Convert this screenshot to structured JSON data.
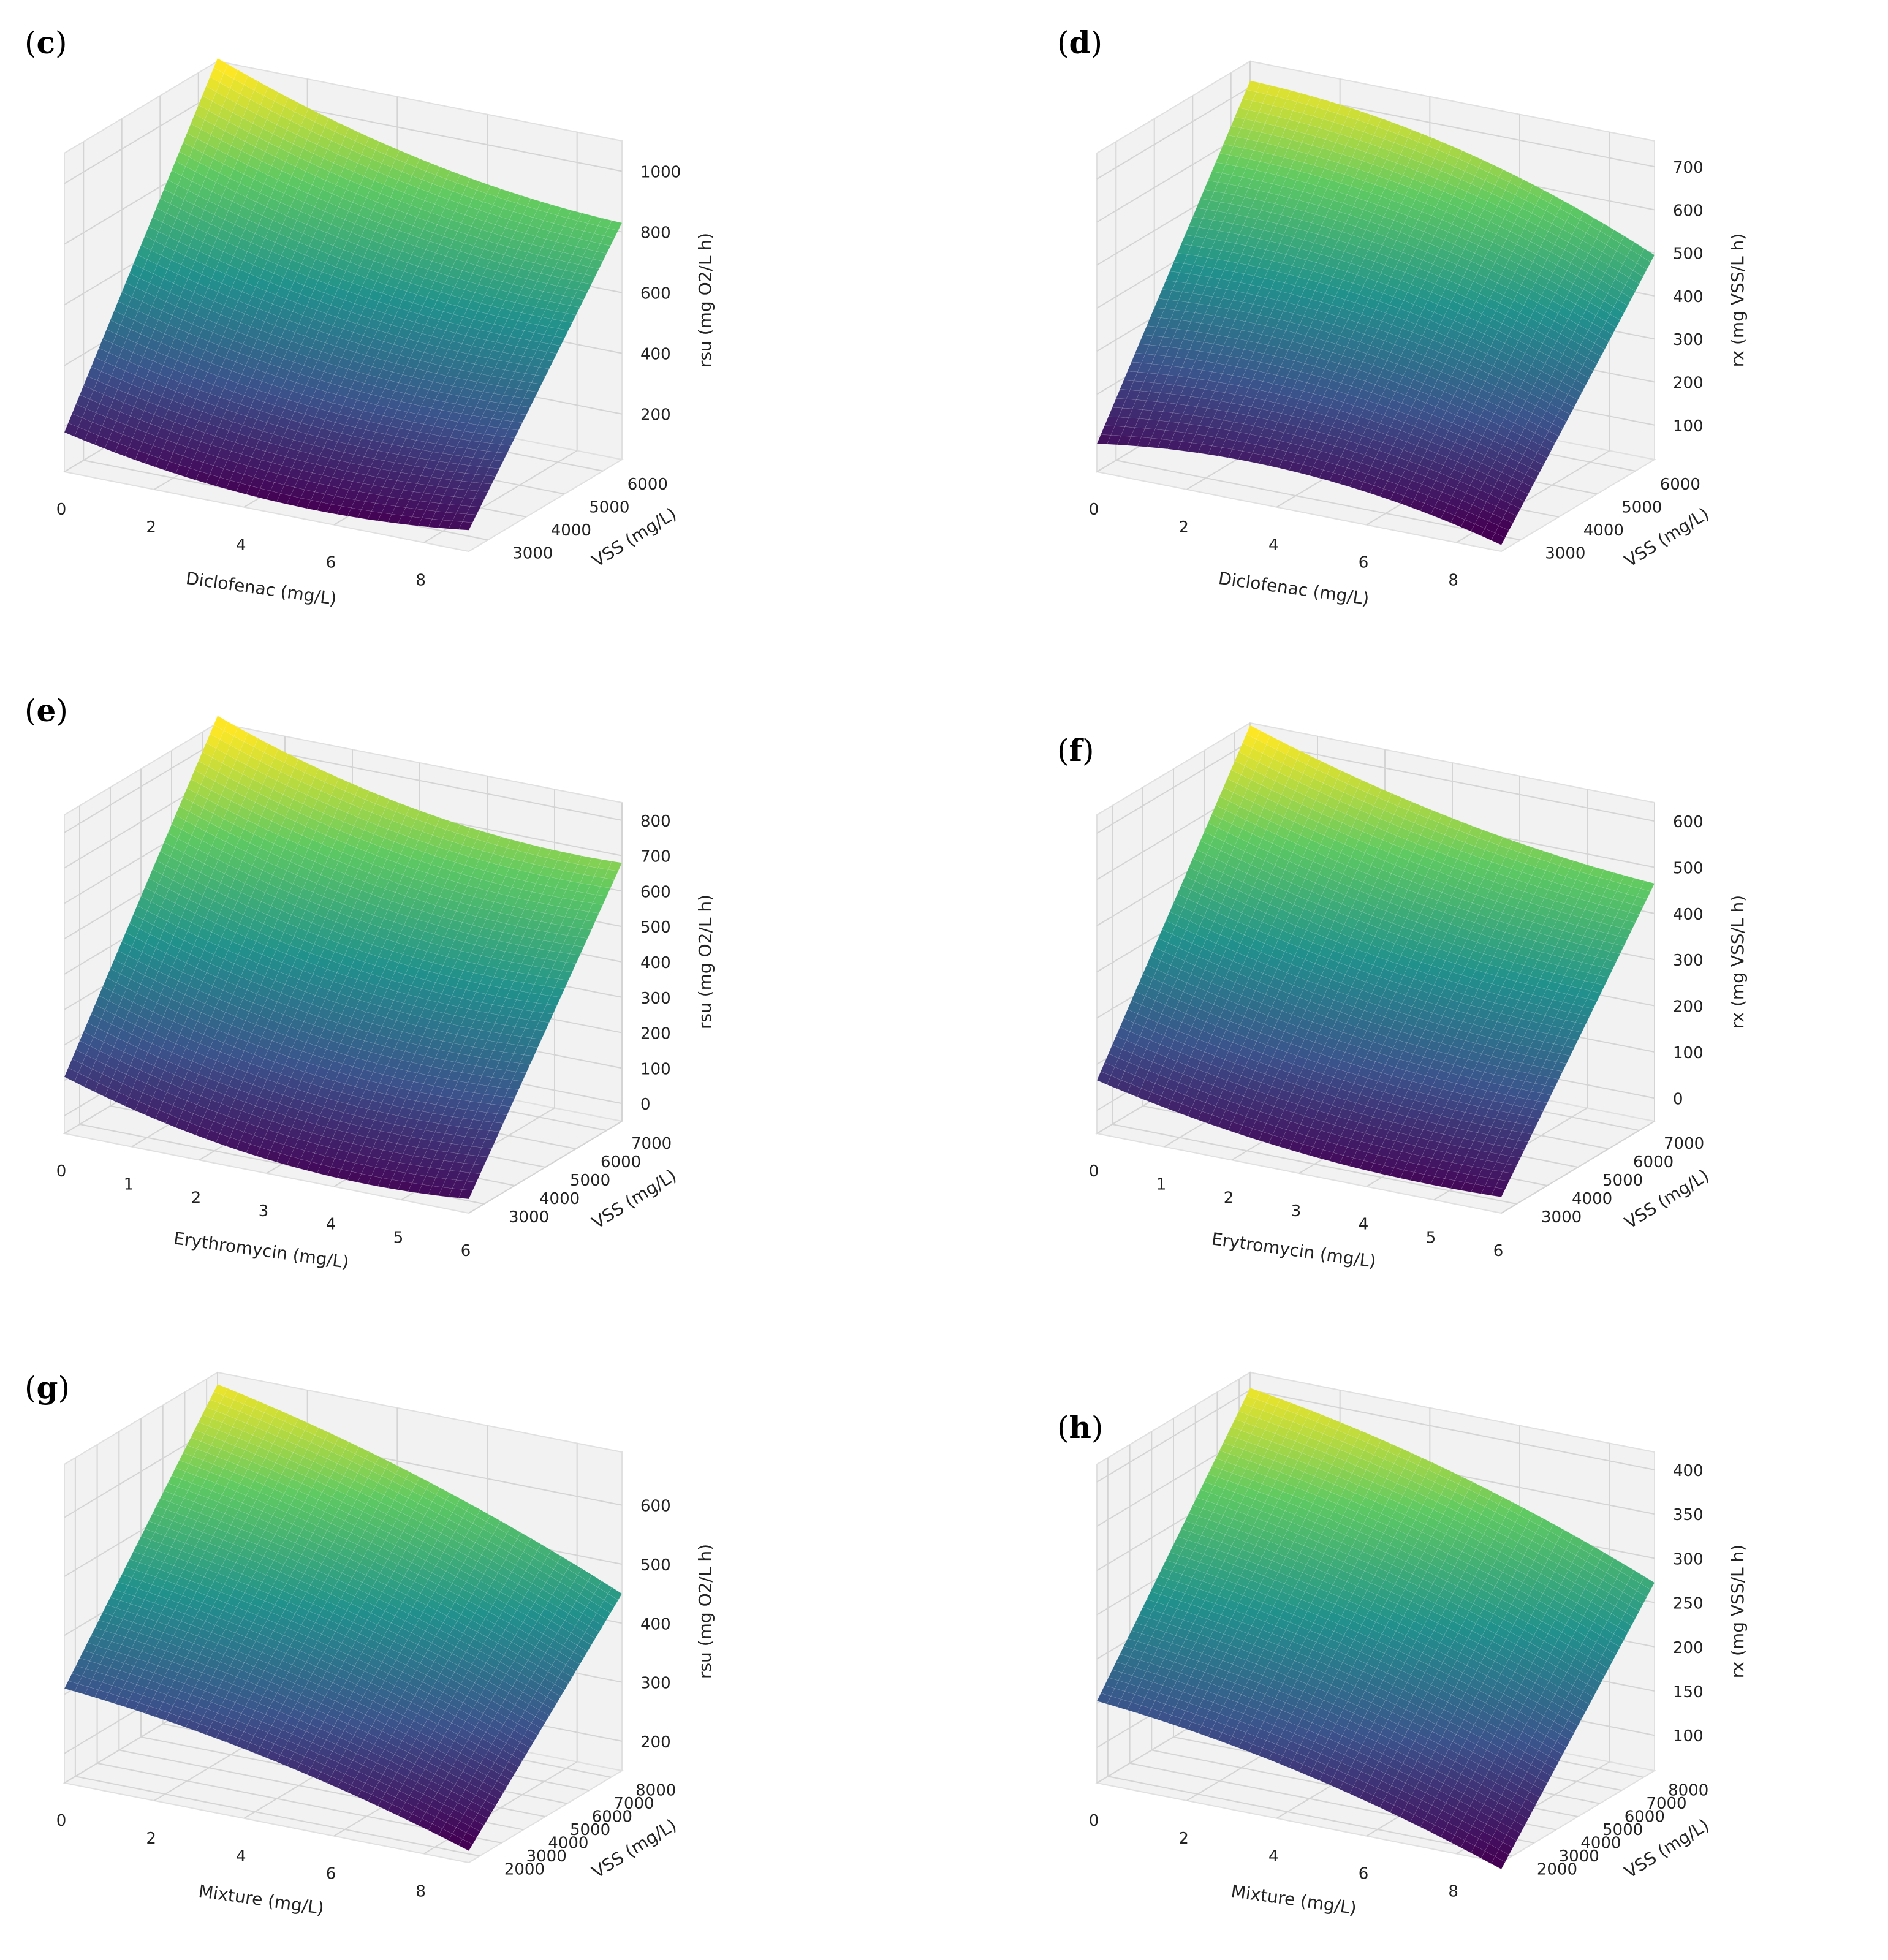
{
  "colormap": [
    "#440154",
    "#3b528b",
    "#21918c",
    "#5ec962",
    "#fde725"
  ],
  "chart_data": [
    {
      "panel_label": "c",
      "type": "surface3d",
      "xlabel": "Diclofenac (mg/L)",
      "ylabel": "VSS (mg/L)",
      "zlabel": "rsu (mg O2/L h)",
      "x_ticks": [
        "0",
        "2",
        "4",
        "6",
        "8"
      ],
      "y_ticks": [
        "3000",
        "4000",
        "5000",
        "6000"
      ],
      "z_ticks": [
        "200",
        "400",
        "600",
        "800",
        "1000"
      ],
      "xlim": [
        0,
        9
      ],
      "ylim": [
        2500,
        6500
      ],
      "zlim": [
        50,
        1100
      ],
      "corners": {
        "x0y0": 150,
        "x1y0": 90,
        "x0y1": 1080,
        "x1y1": 800
      },
      "curvature": -60
    },
    {
      "panel_label": "d",
      "type": "surface3d",
      "xlabel": "Diclofenac (mg/L)",
      "ylabel": "VSS (mg/L)",
      "zlabel": "rx (mg VSS/L h)",
      "x_ticks": [
        "0",
        "2",
        "4",
        "6",
        "8"
      ],
      "y_ticks": [
        "3000",
        "4000",
        "5000",
        "6000"
      ],
      "z_ticks": [
        "100",
        "200",
        "300",
        "400",
        "500",
        "600",
        "700"
      ],
      "xlim": [
        0,
        9
      ],
      "ylim": [
        2500,
        6500
      ],
      "zlim": [
        20,
        760
      ],
      "corners": {
        "x0y0": 110,
        "x1y0": 60,
        "x0y1": 740,
        "x1y1": 520
      },
      "curvature": 50
    },
    {
      "panel_label": "e",
      "type": "surface3d",
      "xlabel": "Erythromycin (mg/L)",
      "ylabel": "VSS (mg/L)",
      "zlabel": "rsu (mg O2/L h)",
      "x_ticks": [
        "0",
        "1",
        "2",
        "3",
        "4",
        "5",
        "6"
      ],
      "y_ticks": [
        "3000",
        "4000",
        "5000",
        "6000",
        "7000"
      ],
      "z_ticks": [
        "0",
        "100",
        "200",
        "300",
        "400",
        "500",
        "600",
        "700",
        "800"
      ],
      "xlim": [
        0,
        6
      ],
      "ylim": [
        2500,
        7500
      ],
      "zlim": [
        -50,
        850
      ],
      "corners": {
        "x0y0": 80,
        "x1y0": -40,
        "x0y1": 840,
        "x1y1": 650
      },
      "curvature": -60
    },
    {
      "panel_label": "f",
      "type": "surface3d",
      "xlabel": "Erytromycin (mg/L)",
      "ylabel": "VSS (mg/L)",
      "zlabel": "rx (mg VSS/L h)",
      "x_ticks": [
        "0",
        "1",
        "2",
        "3",
        "4",
        "5",
        "6"
      ],
      "y_ticks": [
        "3000",
        "4000",
        "5000",
        "6000",
        "7000"
      ],
      "z_ticks": [
        "0",
        "100",
        "200",
        "300",
        "400",
        "500",
        "600"
      ],
      "xlim": [
        0,
        6
      ],
      "ylim": [
        2500,
        7500
      ],
      "zlim": [
        -50,
        640
      ],
      "corners": {
        "x0y0": 50,
        "x1y0": -30,
        "x0y1": 620,
        "x1y1": 450
      },
      "curvature": -30
    },
    {
      "panel_label": "g",
      "type": "surface3d",
      "xlabel": "Mixture (mg/L)",
      "ylabel": "VSS (mg/L)",
      "zlabel": "rsu (mg O2/L h)",
      "x_ticks": [
        "0",
        "2",
        "4",
        "6",
        "8"
      ],
      "y_ticks": [
        "2000",
        "3000",
        "4000",
        "5000",
        "6000",
        "7000",
        "8000"
      ],
      "z_ticks": [
        "200",
        "300",
        "400",
        "500",
        "600"
      ],
      "xlim": [
        0,
        9
      ],
      "ylim": [
        1500,
        8500
      ],
      "zlim": [
        150,
        690
      ],
      "corners": {
        "x0y0": 320,
        "x1y0": 180,
        "x0y1": 680,
        "x1y1": 460
      },
      "curvature": 20
    },
    {
      "panel_label": "h",
      "type": "surface3d",
      "xlabel": "Mixture (mg/L)",
      "ylabel": "VSS (mg/L)",
      "zlabel": "rx (mg VSS/L h)",
      "x_ticks": [
        "0",
        "2",
        "4",
        "6",
        "8"
      ],
      "y_ticks": [
        "2000",
        "3000",
        "4000",
        "5000",
        "6000",
        "7000",
        "8000"
      ],
      "z_ticks": [
        "100",
        "150",
        "200",
        "250",
        "300",
        "350",
        "400"
      ],
      "xlim": [
        0,
        9
      ],
      "ylim": [
        1500,
        8500
      ],
      "zlim": [
        60,
        420
      ],
      "corners": {
        "x0y0": 160,
        "x1y0": 60,
        "x0y1": 410,
        "x1y1": 280
      },
      "curvature": 15
    }
  ]
}
